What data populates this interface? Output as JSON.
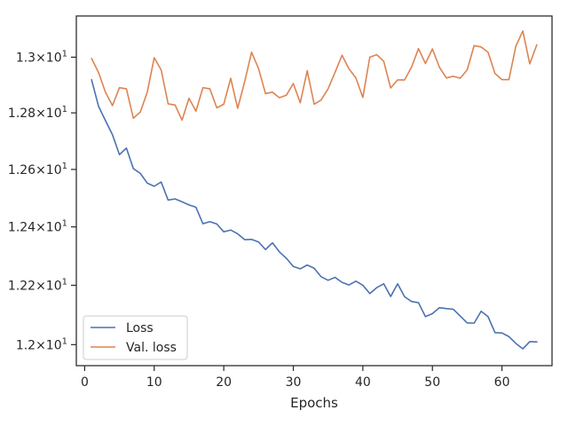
{
  "chart_data": {
    "type": "line",
    "xlabel": "Epochs",
    "ylabel": "",
    "xlim": [
      -1.2,
      67.2
    ],
    "ylim": [
      11.93,
      13.15
    ],
    "yscale": "log",
    "x_ticks": [
      0,
      10,
      20,
      30,
      40,
      50,
      60
    ],
    "y_ticks": [
      {
        "value": 12.0,
        "mantissa": "1.2",
        "base": "10",
        "exp": "1"
      },
      {
        "value": 12.2,
        "mantissa": "1.22",
        "base": "10",
        "exp": "1"
      },
      {
        "value": 12.4,
        "mantissa": "1.24",
        "base": "10",
        "exp": "1"
      },
      {
        "value": 12.6,
        "mantissa": "1.26",
        "base": "10",
        "exp": "1"
      },
      {
        "value": 12.8,
        "mantissa": "1.28",
        "base": "10",
        "exp": "1"
      },
      {
        "value": 13.0,
        "mantissa": "1.3",
        "base": "10",
        "exp": "1"
      }
    ],
    "grid": false,
    "legend_position": "lower-left",
    "x": [
      1,
      2,
      3,
      4,
      5,
      6,
      7,
      8,
      9,
      10,
      11,
      12,
      13,
      14,
      15,
      16,
      17,
      18,
      19,
      20,
      21,
      22,
      23,
      24,
      25,
      26,
      27,
      28,
      29,
      30,
      31,
      32,
      33,
      34,
      35,
      36,
      37,
      38,
      39,
      40,
      41,
      42,
      43,
      44,
      45,
      46,
      47,
      48,
      49,
      50,
      51,
      52,
      53,
      54,
      55,
      56,
      57,
      58,
      59,
      60,
      61,
      62,
      63,
      64,
      65
    ],
    "series": [
      {
        "name": "Loss",
        "color": "#4c72b0",
        "values": [
          12.918,
          12.823,
          12.772,
          12.722,
          12.652,
          12.675,
          12.603,
          12.586,
          12.552,
          12.541,
          12.556,
          12.493,
          12.497,
          12.487,
          12.476,
          12.468,
          12.411,
          12.418,
          12.41,
          12.383,
          12.389,
          12.376,
          12.356,
          12.357,
          12.348,
          12.322,
          12.345,
          12.314,
          12.292,
          12.264,
          12.256,
          12.269,
          12.258,
          12.229,
          12.217,
          12.227,
          12.21,
          12.201,
          12.214,
          12.2,
          12.172,
          12.192,
          12.205,
          12.162,
          12.205,
          12.161,
          12.145,
          12.141,
          12.094,
          12.104,
          12.124,
          12.121,
          12.119,
          12.096,
          12.073,
          12.072,
          12.112,
          12.094,
          12.04,
          12.039,
          12.027,
          12.004,
          11.986,
          12.01,
          12.009
        ]
      },
      {
        "name": "Val. loss",
        "color": "#dd8452",
        "values": [
          12.995,
          12.944,
          12.873,
          12.826,
          12.89,
          12.886,
          12.781,
          12.803,
          12.874,
          12.998,
          12.954,
          12.832,
          12.828,
          12.774,
          12.852,
          12.806,
          12.89,
          12.886,
          12.818,
          12.831,
          12.924,
          12.816,
          12.911,
          13.018,
          12.959,
          12.869,
          12.874,
          12.854,
          12.863,
          12.905,
          12.836,
          12.951,
          12.831,
          12.846,
          12.886,
          12.945,
          13.007,
          12.958,
          12.925,
          12.855,
          13.0,
          13.009,
          12.985,
          12.889,
          12.918,
          12.918,
          12.964,
          13.031,
          12.977,
          13.03,
          12.964,
          12.925,
          12.931,
          12.924,
          12.954,
          13.042,
          13.037,
          13.018,
          12.941,
          12.919,
          12.919,
          13.04,
          13.095,
          12.976,
          13.044
        ]
      }
    ]
  }
}
